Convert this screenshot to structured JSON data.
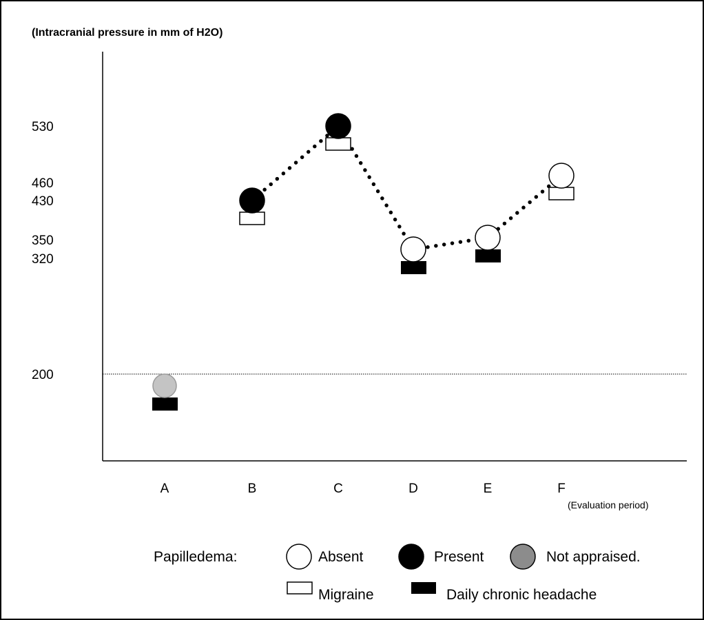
{
  "chart_data": {
    "type": "scatter",
    "title": "(Intracranial pressure in mm of H2O)",
    "xlabel": "",
    "x_note": "(Evaluation period)",
    "categories": [
      "A",
      "B",
      "C",
      "D",
      "E",
      "F"
    ],
    "y_ticks": [
      530,
      460,
      430,
      350,
      320,
      200
    ],
    "reference_line": 200,
    "points": [
      {
        "category": "A",
        "value": 185,
        "papilledema": "Not appraised.",
        "headache": "Daily chronic headache"
      },
      {
        "category": "B",
        "value": 430,
        "papilledema": "Present",
        "headache": "Migraine"
      },
      {
        "category": "C",
        "value": 530,
        "papilledema": "Present",
        "headache": "Migraine"
      },
      {
        "category": "D",
        "value": 330,
        "papilledema": "Absent",
        "headache": "Daily chronic headache"
      },
      {
        "category": "E",
        "value": 345,
        "papilledema": "Absent",
        "headache": "Daily chronic headache"
      },
      {
        "category": "F",
        "value": 465,
        "papilledema": "Absent",
        "headache": "Migraine"
      }
    ],
    "dotted_line_categories": [
      "B",
      "C",
      "D",
      "E",
      "F"
    ],
    "legend": {
      "papilledema_label": "Papilledema:",
      "absent": "Absent",
      "present": "Present",
      "not_appraised": "Not appraised.",
      "migraine": "Migraine",
      "daily": "Daily chronic headache"
    },
    "colors": {
      "present": "#000000",
      "absent": "#ffffff",
      "not_appraised_point": "#c4c4c4",
      "not_appraised_legend": "#8c8c8c"
    }
  }
}
